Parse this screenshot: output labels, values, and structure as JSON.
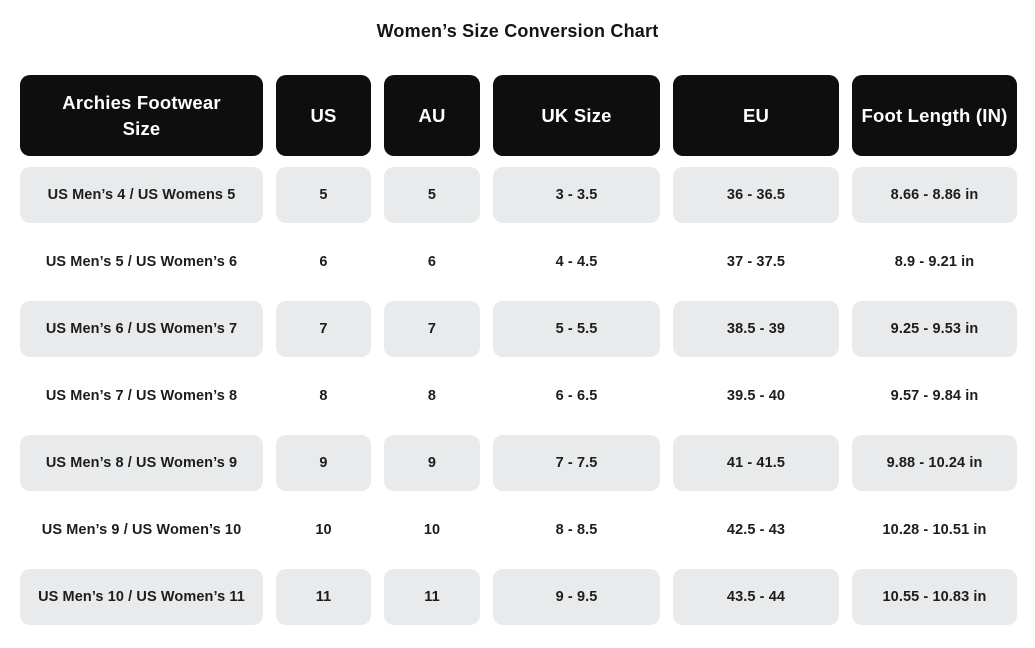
{
  "title": "Women’s Size Conversion Chart",
  "colors": {
    "header_bg": "#0e0e0e",
    "header_text": "#ffffff",
    "row_shaded_bg": "#e8eaeb",
    "cell_text": "#1d1d1d",
    "title_text": "#141414",
    "page_bg": "#ffffff"
  },
  "chart_data": {
    "type": "table",
    "title": "Women’s Size Conversion Chart",
    "columns": [
      "Archies Footwear Size",
      "US",
      "AU",
      "UK Size",
      "EU",
      "Foot Length (IN)"
    ],
    "rows": [
      [
        "US Men’s 4 / US Womens 5",
        "5",
        "5",
        "3 - 3.5",
        "36 - 36.5",
        "8.66 - 8.86 in"
      ],
      [
        "US Men’s 5 / US Women’s 6",
        "6",
        "6",
        "4 - 4.5",
        "37 - 37.5",
        "8.9 - 9.21 in"
      ],
      [
        "US Men’s 6 / US Women’s 7",
        "7",
        "7",
        "5 - 5.5",
        "38.5 - 39",
        "9.25 - 9.53 in"
      ],
      [
        "US Men’s 7 / US Women’s 8",
        "8",
        "8",
        "6 - 6.5",
        "39.5 - 40",
        "9.57 - 9.84 in"
      ],
      [
        "US Men’s 8 / US Women’s 9",
        "9",
        "9",
        "7 - 7.5",
        "41 - 41.5",
        "9.88 - 10.24 in"
      ],
      [
        "US Men’s 9 / US Women’s 10",
        "10",
        "10",
        "8 - 8.5",
        "42.5 - 43",
        "10.28 - 10.51 in"
      ],
      [
        "US Men’s 10 / US Women’s 11",
        "11",
        "11",
        "9 - 9.5",
        "43.5 - 44",
        "10.55 - 10.83 in"
      ]
    ],
    "layout": {
      "shaded_row_indices": [
        0,
        2,
        4,
        6
      ],
      "gridlines": false
    }
  }
}
